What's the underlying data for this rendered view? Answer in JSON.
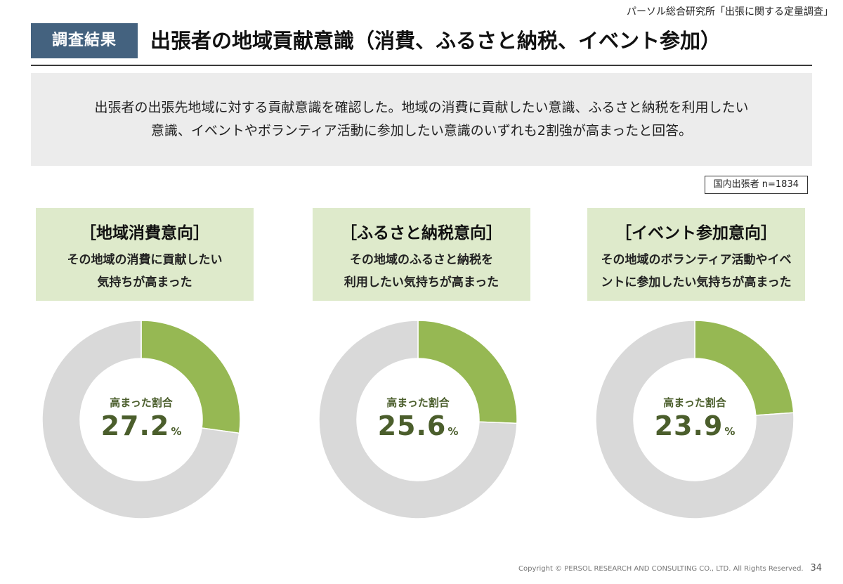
{
  "header": {
    "source": "パーソル総合研究所「出張に関する定量調査」",
    "tag": "調査結果",
    "title": "出張者の地域貢献意識（消費、ふるさと納税、イベント参加）"
  },
  "summary": {
    "line1": "出張者の出張先地域に対する貢献意識を確認した。地域の消費に貢献したい意識、ふるさと納税を利用したい",
    "line2": "意識、イベントやボランティア活動に参加したい意識のいずれも2割強が高まったと回答。"
  },
  "sample": "国内出張者 n=1834",
  "colors": {
    "highlight": "#96b853",
    "rest": "#d9d9d9",
    "panel_bg": "#deeacb",
    "value_text": "#4b5e2c",
    "tag_bg": "#44627f"
  },
  "panels": [
    {
      "title": "［地域消費意向］",
      "desc1": "その地域の消費に貢献したい",
      "desc2": "気持ちが高まった",
      "center_label": "高まった割合",
      "value_text": "27.2",
      "unit": "%"
    },
    {
      "title": "［ふるさと納税意向］",
      "desc1": "その地域のふるさと納税を",
      "desc2": "利用したい気持ちが高まった",
      "center_label": "高まった割合",
      "value_text": "25.6",
      "unit": "%"
    },
    {
      "title": "［イベント参加意向］",
      "desc1": "その地域のボランティア活動やイベ",
      "desc2": "ントに参加したい気持ちが高まった",
      "center_label": "高まった割合",
      "value_text": "23.9",
      "unit": "%"
    }
  ],
  "chart_data": [
    {
      "type": "pie",
      "title": "［地域消費意向］",
      "values": [
        27.2,
        72.8
      ]
    },
    {
      "type": "pie",
      "title": "［ふるさと納税意向］",
      "values": [
        25.6,
        74.4
      ]
    },
    {
      "type": "pie",
      "title": "［イベント参加意向］",
      "values": [
        23.9,
        76.1
      ]
    }
  ],
  "footer": {
    "copyright": "Copyright © PERSOL RESEARCH AND CONSULTING CO., LTD. All Rights Reserved.",
    "page": "34"
  }
}
